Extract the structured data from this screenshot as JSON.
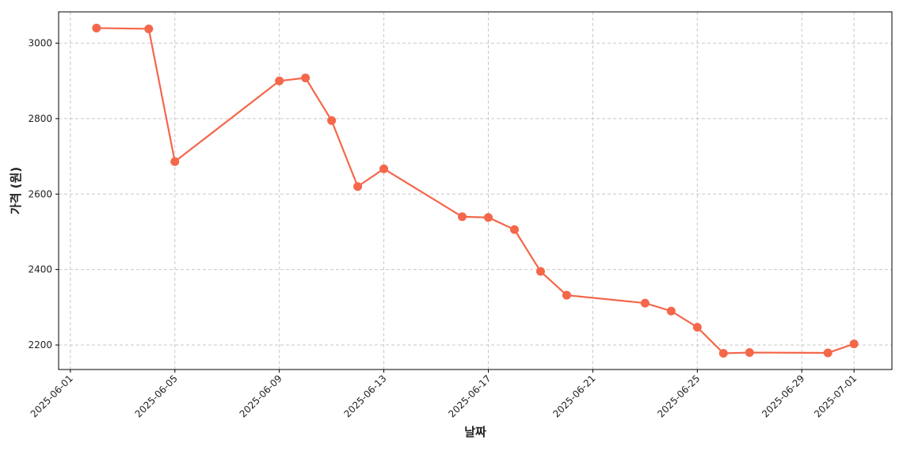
{
  "chart_data": {
    "type": "line",
    "x": [
      "2025-06-02",
      "2025-06-04",
      "2025-06-05",
      "2025-06-09",
      "2025-06-10",
      "2025-06-11",
      "2025-06-12",
      "2025-06-13",
      "2025-06-16",
      "2025-06-17",
      "2025-06-18",
      "2025-06-19",
      "2025-06-20",
      "2025-06-23",
      "2025-06-24",
      "2025-06-25",
      "2025-06-26",
      "2025-06-27",
      "2025-06-30",
      "2025-07-01"
    ],
    "series": [
      {
        "color": "#f4674a",
        "values": [
          3040,
          3038,
          2686,
          2900,
          2908,
          2795,
          2620,
          2667,
          2540,
          2538,
          2506,
          2395,
          2332,
          2311,
          2290,
          2247,
          2178,
          2180,
          2179,
          2203
        ]
      }
    ],
    "xlabel": "날짜",
    "ylabel": "가격 (원)",
    "xlim": [
      "2025-05-31T13:12",
      "2025-07-02T10:48"
    ],
    "xticks": [
      "2025-06-01",
      "2025-06-05",
      "2025-06-09",
      "2025-06-13",
      "2025-06-17",
      "2025-06-21",
      "2025-06-25",
      "2025-06-29",
      "2025-07-01"
    ],
    "ylim": [
      2135,
      3083
    ],
    "yticks": [
      2200,
      2400,
      2600,
      2800,
      3000
    ],
    "grid": true
  }
}
